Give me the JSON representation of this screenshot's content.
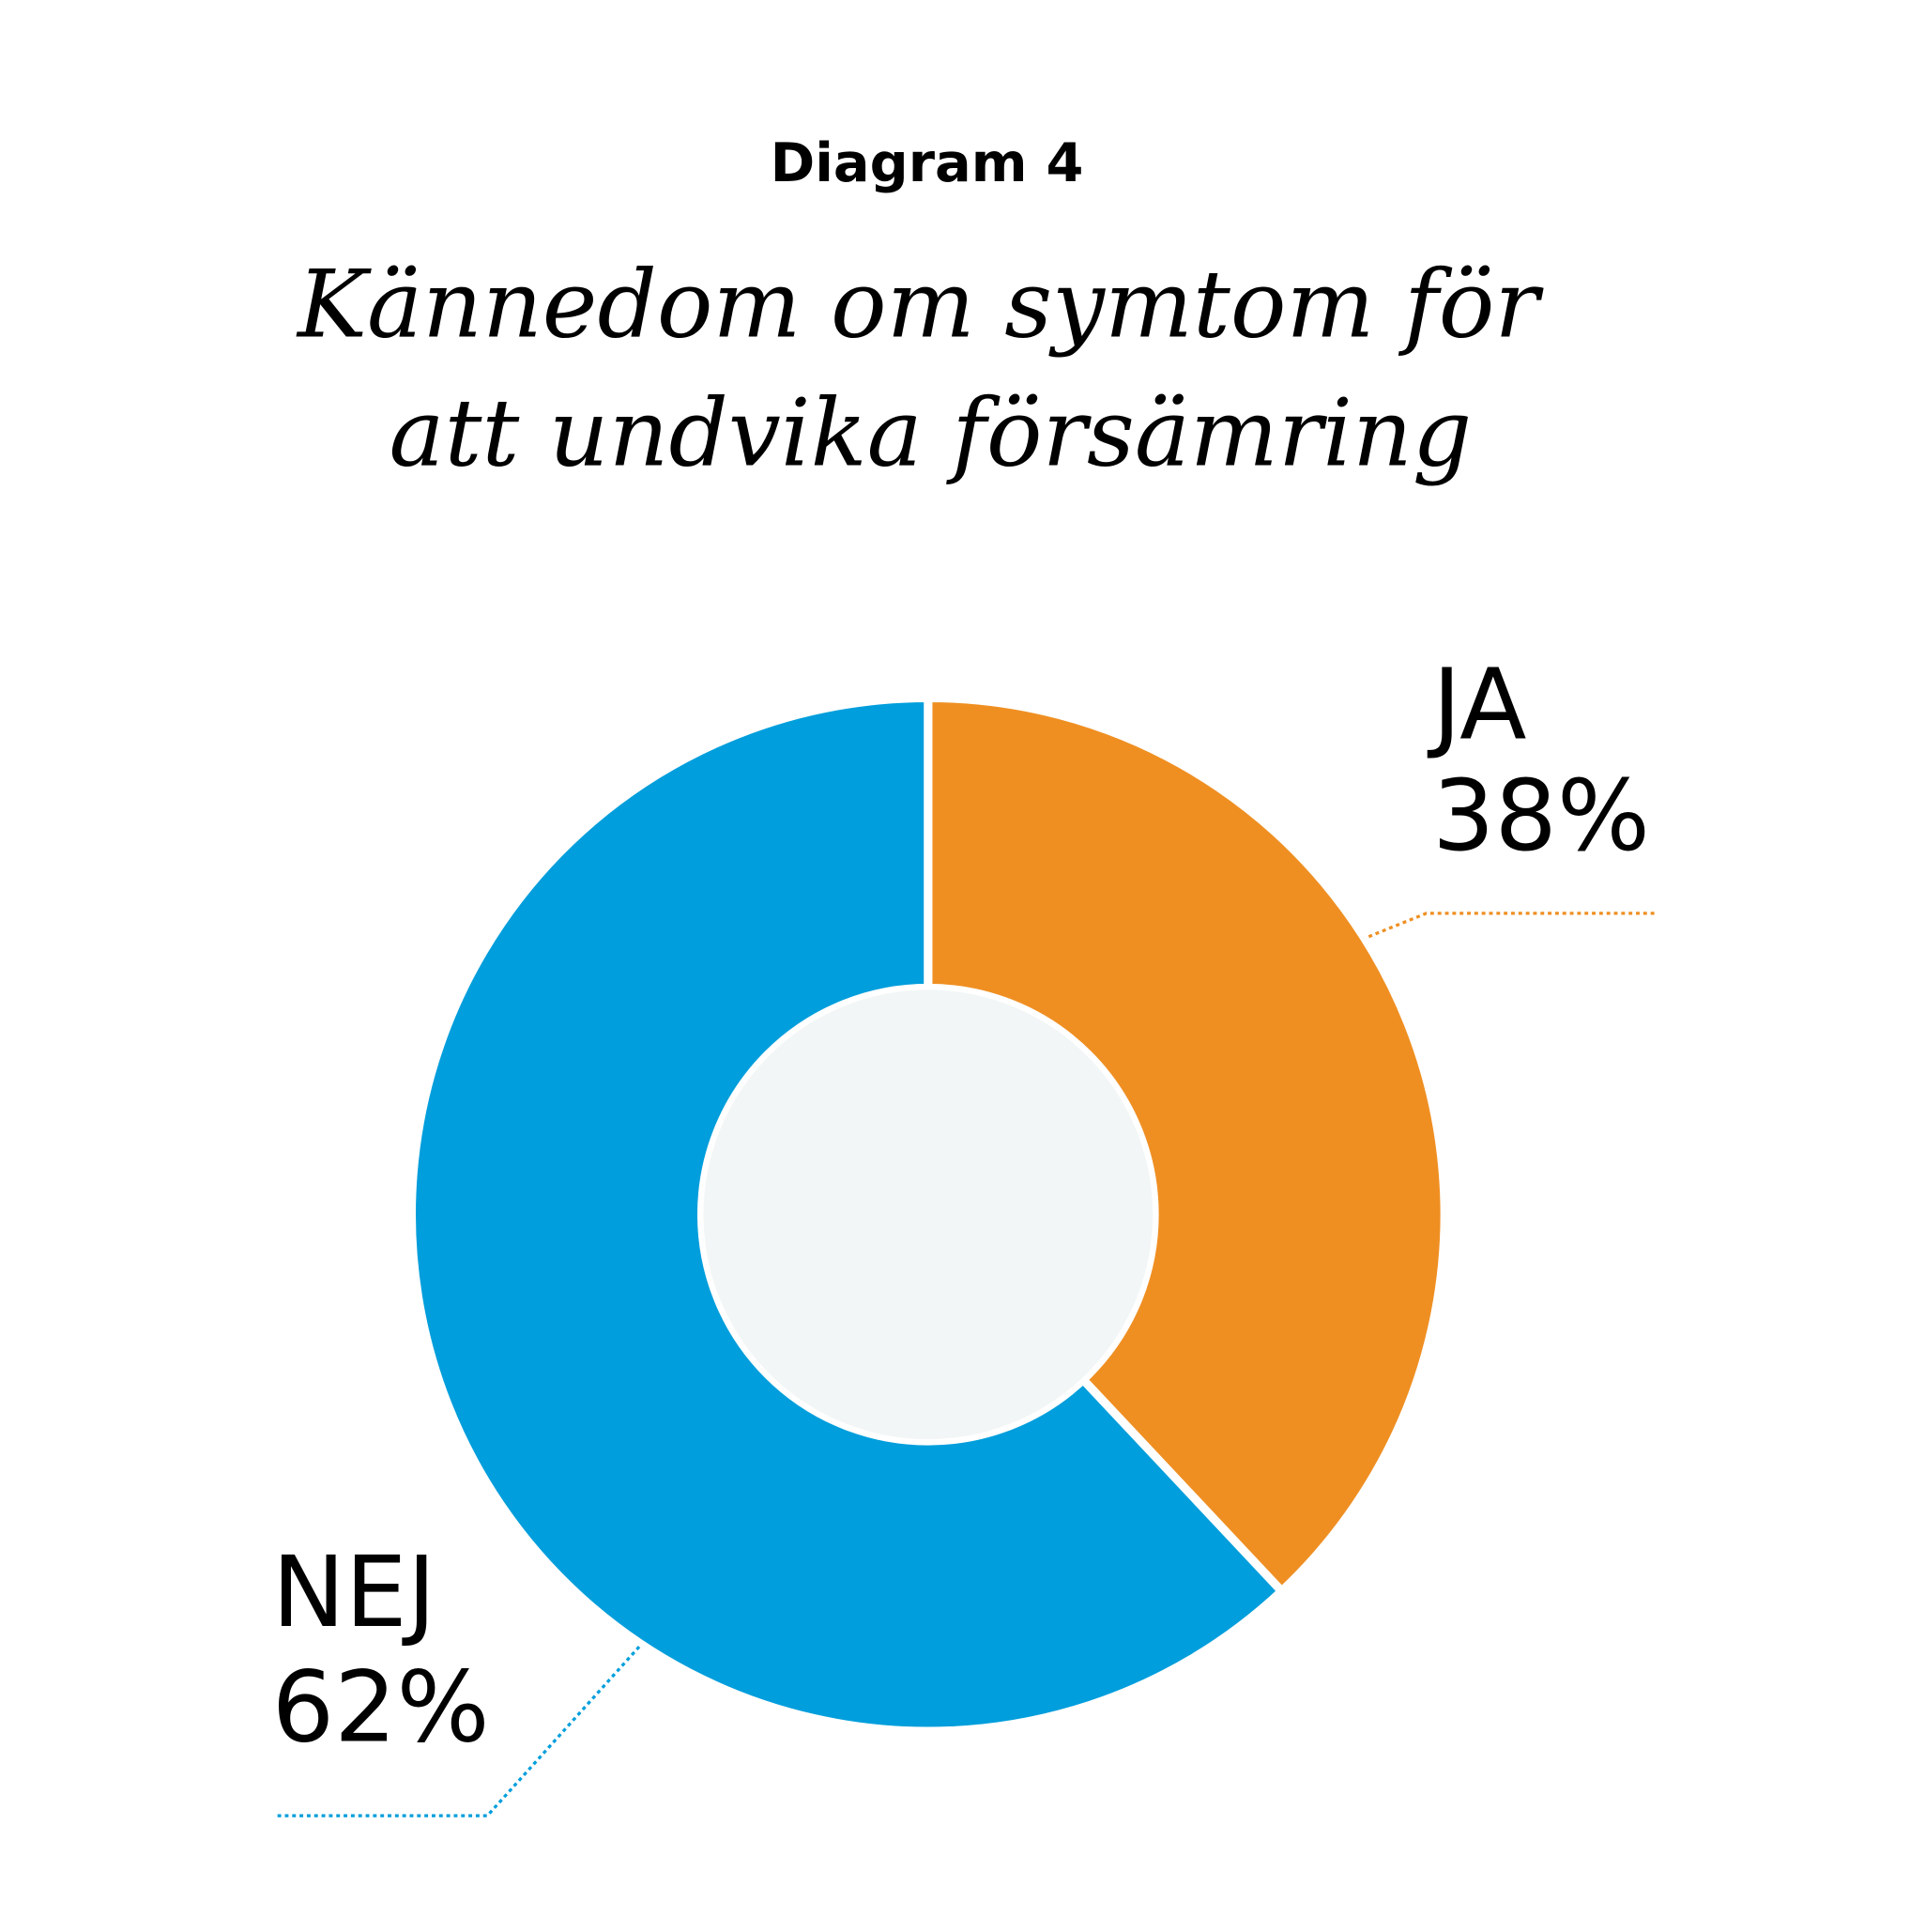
{
  "chart_data": {
    "type": "pie",
    "subtitle": "Diagram 4",
    "title": [
      "Kännedom om symtom för",
      "att undvika försämring"
    ],
    "categories": [
      "JA",
      "NEJ"
    ],
    "values": [
      38,
      62
    ],
    "value_labels": [
      "38%",
      "62%"
    ],
    "colors": [
      "#ef8f22",
      "#009edc"
    ],
    "hole_color": "#f2f6f6"
  }
}
